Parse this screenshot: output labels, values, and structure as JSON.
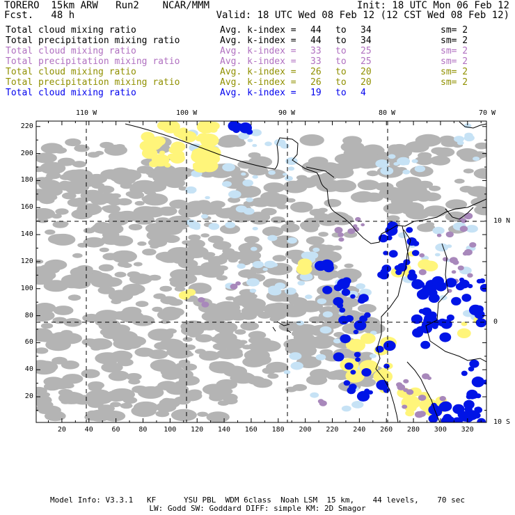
{
  "header": {
    "line1_left": "TORERO  15km ARW   Run2    NCAR/MMM",
    "line1_right": "Init: 18 UTC Mon 06 Feb 12",
    "line2_left": "Fcst.   48 h",
    "line2_right": "Valid: 18 UTC Wed 08 Feb 12 (12 CST Wed 08 Feb 12)"
  },
  "legend": [
    {
      "field": "Total cloud mixing ratio",
      "kindex": "Avg. k-index =",
      "from": "44",
      "to_word": "to",
      "to": "34",
      "sm": "sm= 2",
      "color": "#000000"
    },
    {
      "field": "Total precipitation mixing ratio",
      "kindex": "Avg. k-index =",
      "from": "44",
      "to_word": "to",
      "to": "34",
      "sm": "sm= 2",
      "color": "#000000"
    },
    {
      "field": "Total cloud mixing ratio",
      "kindex": "Avg. k-index =",
      "from": "33",
      "to_word": "to",
      "to": "25",
      "sm": "sm= 2",
      "color": "#b070c0"
    },
    {
      "field": "Total precipitation mixing ratio",
      "kindex": "Avg. k-index =",
      "from": "33",
      "to_word": "to",
      "to": "25",
      "sm": "sm= 2",
      "color": "#b070c0"
    },
    {
      "field": "Total cloud mixing ratio",
      "kindex": "Avg. k-index =",
      "from": "26",
      "to_word": "to",
      "to": "20",
      "sm": "sm= 2",
      "color": "#909000"
    },
    {
      "field": "Total precipitation mixing ratio",
      "kindex": "Avg. k-index =",
      "from": "26",
      "to_word": "to",
      "to": "20",
      "sm": "sm= 2",
      "color": "#909000"
    },
    {
      "field": "Total cloud mixing ratio",
      "kindex": "Avg. k-index =",
      "from": "19",
      "to_word": "to",
      "to": "4",
      "sm": "",
      "color": "#0000ee"
    }
  ],
  "map": {
    "lon_labels": [
      "110 W",
      "100 W",
      "90 W",
      "80 W",
      "70 W"
    ],
    "lat_labels": [
      "10 N",
      "0",
      "10 S"
    ],
    "x_ticks": [
      "20",
      "40",
      "60",
      "80",
      "100",
      "120",
      "140",
      "160",
      "180",
      "200",
      "220",
      "240",
      "260",
      "280",
      "300",
      "320"
    ],
    "y_ticks": [
      "20",
      "40",
      "60",
      "80",
      "100",
      "120",
      "140",
      "160",
      "180",
      "200",
      "220"
    ],
    "colors": {
      "gray_cloud": "#b4b4b4",
      "light_blue": "#c6e2f5",
      "yellow": "#fff57a",
      "purple": "#a888bb",
      "blue": "#0014e6"
    }
  },
  "footer": {
    "line1": "Model Info: V3.3.1   KF      YSU PBL  WDM 6class  Noah LSM  15 km,    44 levels,    70 sec",
    "line2": "LW: Godd SW: Goddard DIFF: simple KM: 2D Smagor"
  }
}
